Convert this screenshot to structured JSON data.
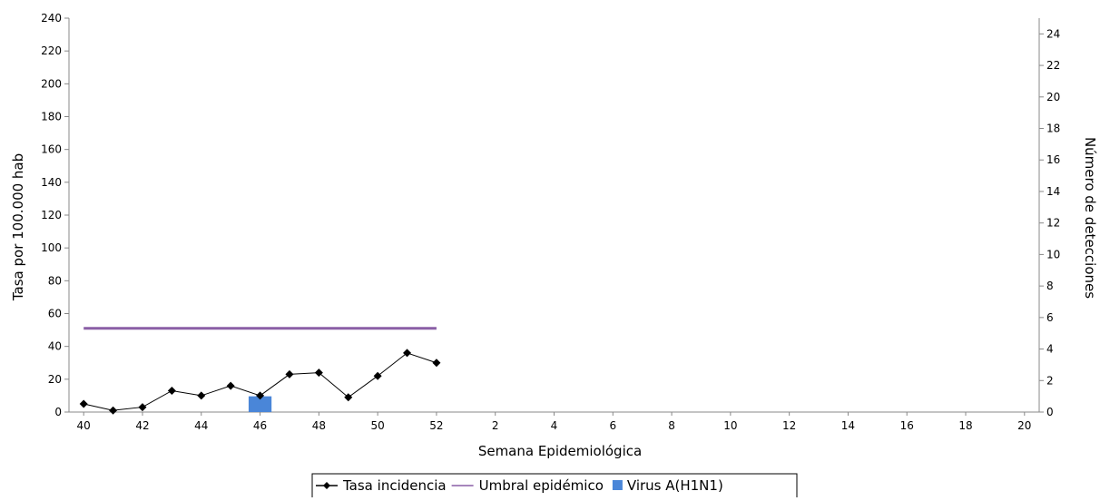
{
  "chart_data": {
    "type": "line",
    "xlabel": "Semana Epidemiológica",
    "ylabel": "Tasa por 100.000 hab",
    "y2label": "Número de detecciones",
    "categories": [
      "40",
      "41",
      "42",
      "43",
      "44",
      "45",
      "46",
      "47",
      "48",
      "49",
      "50",
      "51",
      "52",
      "1",
      "2",
      "3",
      "4",
      "5",
      "6",
      "7",
      "8",
      "9",
      "10",
      "11",
      "12",
      "13",
      "14",
      "15",
      "16",
      "17",
      "18",
      "19",
      "20"
    ],
    "ylim": [
      0,
      240
    ],
    "y2lim": [
      0,
      25
    ],
    "yticks": [
      "0",
      "20",
      "40",
      "60",
      "80",
      "100",
      "120",
      "140",
      "160",
      "180",
      "200",
      "220",
      "240"
    ],
    "y2ticks": [
      "0",
      "2",
      "4",
      "6",
      "8",
      "10",
      "12",
      "14",
      "16",
      "18",
      "20",
      "22",
      "24"
    ],
    "xtick_labels": [
      "40",
      "42",
      "44",
      "46",
      "48",
      "50",
      "52",
      "2",
      "4",
      "6",
      "8",
      "10",
      "12",
      "14",
      "16",
      "18",
      "20"
    ],
    "grid": false,
    "legend_position": "bottom",
    "series": [
      {
        "name": "Tasa incidencia",
        "kind": "line",
        "axis": "left",
        "color": "#000000",
        "marker": "diamond",
        "points": [
          {
            "x": "40",
            "y": 5
          },
          {
            "x": "41",
            "y": 1
          },
          {
            "x": "42",
            "y": 3
          },
          {
            "x": "43",
            "y": 13
          },
          {
            "x": "44",
            "y": 10
          },
          {
            "x": "45",
            "y": 16
          },
          {
            "x": "46",
            "y": 10
          },
          {
            "x": "47",
            "y": 23
          },
          {
            "x": "48",
            "y": 24
          },
          {
            "x": "49",
            "y": 9
          },
          {
            "x": "50",
            "y": 22
          },
          {
            "x": "51",
            "y": 36
          },
          {
            "x": "52",
            "y": 30
          }
        ]
      },
      {
        "name": "Umbral epidémico",
        "kind": "line",
        "axis": "left",
        "color": "#8a5fa6",
        "marker": "none",
        "points": [
          {
            "x": "40",
            "y": 51
          },
          {
            "x": "41",
            "y": 51
          },
          {
            "x": "42",
            "y": 51
          },
          {
            "x": "43",
            "y": 51
          },
          {
            "x": "44",
            "y": 51
          },
          {
            "x": "45",
            "y": 51
          },
          {
            "x": "46",
            "y": 51
          },
          {
            "x": "47",
            "y": 51
          },
          {
            "x": "48",
            "y": 51
          },
          {
            "x": "49",
            "y": 51
          },
          {
            "x": "50",
            "y": 51
          },
          {
            "x": "51",
            "y": 51
          },
          {
            "x": "52",
            "y": 51
          }
        ]
      },
      {
        "name": "Virus A(H1N1)",
        "kind": "bar",
        "axis": "right",
        "color": "#4a86d8",
        "points": [
          {
            "x": "46",
            "y": 1
          }
        ]
      }
    ]
  }
}
